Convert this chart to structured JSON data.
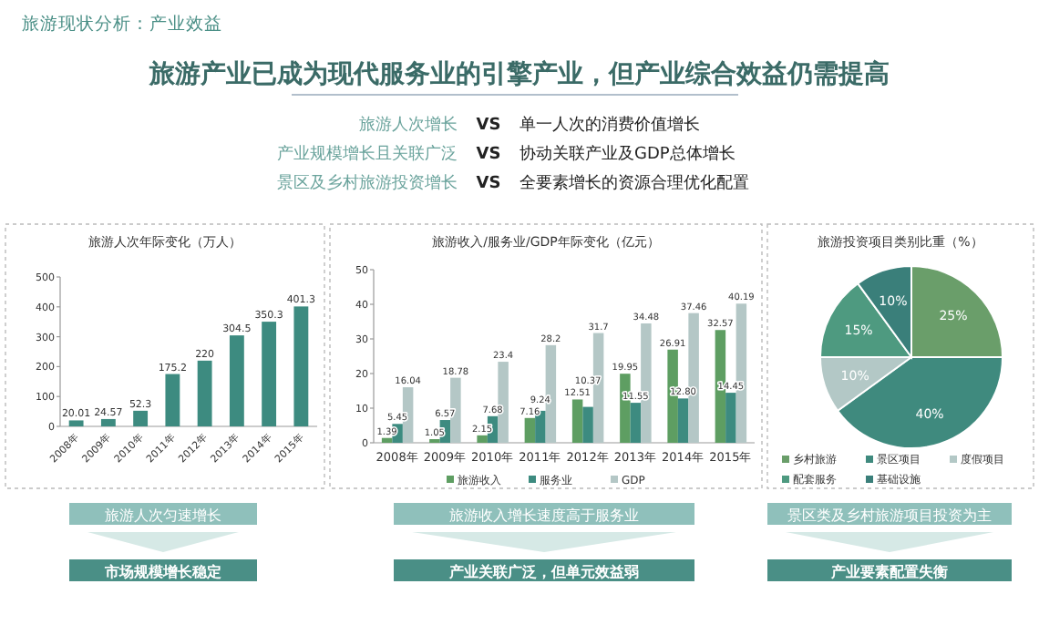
{
  "chart_data": [
    {
      "type": "other",
      "title": "旅游现状分析：产业效益",
      "subtitle": "旅游产业已成为现代服务业的引擎产业，但产业综合效益仍需提高",
      "annotations": [
        "旅游人次增长",
        "VS",
        "单一人次的消费价值增长",
        "产业规模增长且关联广泛",
        "VS",
        "协动关联产业及GDP总体增长",
        "景区及乡村旅游投资增长",
        "VS",
        "全要素增长的资源合理优化配置"
      ]
    },
    {
      "type": "bar",
      "title": "旅游人次年际变化（万人）",
      "categories": [
        "2008年",
        "2009年",
        "2010年",
        "2011年",
        "2012年",
        "2013年",
        "2014年",
        "2015年"
      ],
      "values": [
        20.01,
        24.57,
        52.3,
        175.2,
        220,
        304.5,
        350.3,
        401.3
      ],
      "color": "#3d8b80",
      "ylim": [
        0,
        500
      ],
      "yticks": [
        0,
        100,
        200,
        300,
        400,
        500
      ],
      "data_labels": true,
      "annotations": [
        "旅游人次匀速增长",
        "市场规模增长稳定"
      ]
    },
    {
      "type": "bar",
      "title": "旅游收入/服务业/GDP年际变化（亿元）",
      "categories": [
        "2008年",
        "2009年",
        "2010年",
        "2011年",
        "2012年",
        "2013年",
        "2014年",
        "2015年"
      ],
      "series": [
        {
          "name": "旅游收入",
          "color": "#5e9e62",
          "values": [
            1.39,
            1.05,
            2.15,
            7.16,
            12.51,
            19.95,
            26.91,
            32.57
          ]
        },
        {
          "name": "服务业",
          "color": "#3d8b80",
          "values": [
            5.45,
            6.57,
            7.68,
            9.24,
            10.37,
            11.55,
            12.8,
            14.45
          ],
          "value_labels": [
            "5.45",
            "6.57",
            "7.68",
            "9.24",
            "10.37",
            "11.55",
            "12.80",
            "14.45"
          ]
        },
        {
          "name": "GDP",
          "color": "#b4c7c6",
          "values": [
            16.04,
            18.78,
            23.4,
            28.2,
            31.7,
            34.48,
            37.46,
            40.19
          ]
        }
      ],
      "ylim": [
        0,
        50
      ],
      "yticks": [
        0,
        10,
        20,
        30,
        40,
        50
      ],
      "data_labels": true,
      "legend": "bottom",
      "annotations": [
        "旅游收入增长速度高于服务业",
        "产业关联广泛，但单元效益弱"
      ]
    },
    {
      "type": "pie",
      "title": "旅游投资项目类别比重（%）",
      "categories": [
        "乡村旅游",
        "景区项目",
        "度假项目",
        "配套服务",
        "基础设施"
      ],
      "values": [
        25,
        40,
        10,
        15,
        10
      ],
      "colors": [
        "#6a9e6a",
        "#3f8a7e",
        "#b3c8c6",
        "#4e9a80",
        "#3a7f7a"
      ],
      "value_labels": [
        "25%",
        "40%",
        "10%",
        "15%",
        "10%"
      ],
      "legend": "bottom",
      "annotations": [
        "景区类及乡村旅游项目投资为主",
        "产业要素配置失衡"
      ]
    }
  ]
}
